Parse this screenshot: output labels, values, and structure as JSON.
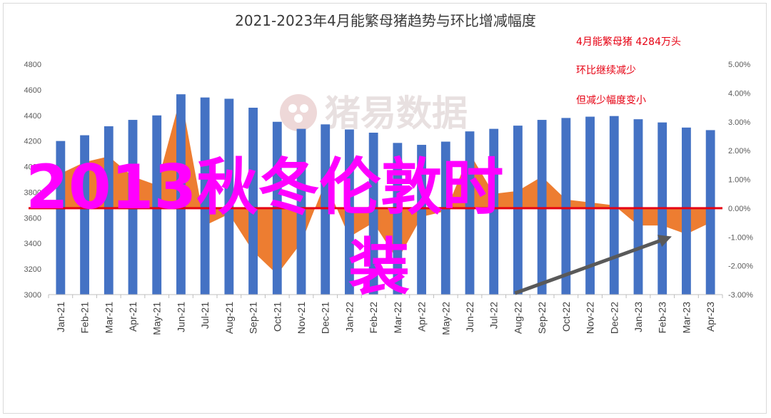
{
  "chart_data": {
    "type": "bar",
    "title": "2021-2023年4月能繁母猪趋势与环比增减幅度",
    "categories": [
      "Jan-21",
      "Feb-21",
      "Mar-21",
      "Apr-21",
      "May-21",
      "Jun-21",
      "Jul-21",
      "Aug-21",
      "Sep-21",
      "Oct-21",
      "Nov-21",
      "Dec-21",
      "Jan-22",
      "Feb-22",
      "Mar-22",
      "Apr-22",
      "May-22",
      "Jun-22",
      "Jul-22",
      "Aug-22",
      "Sep-22",
      "Oct-22",
      "Nov-22",
      "Dec-22",
      "Jan-23",
      "Feb-23",
      "Mar-23",
      "Apr-23"
    ],
    "series": [
      {
        "axis": "left",
        "type": "bar",
        "color": "#4472c4",
        "values": [
          4200,
          4245,
          4315,
          4365,
          4400,
          4565,
          4540,
          4530,
          4460,
          4350,
          4295,
          4330,
          4290,
          4265,
          4185,
          4170,
          4195,
          4275,
          4295,
          4320,
          4365,
          4380,
          4390,
          4395,
          4370,
          4345,
          4305,
          4285
        ]
      },
      {
        "axis": "right",
        "type": "area",
        "color": "#ed7d31",
        "values": [
          1.2,
          1.6,
          1.8,
          1.1,
          0.8,
          3.9,
          -0.6,
          -0.2,
          -1.5,
          -2.3,
          -1.2,
          0.9,
          -1.0,
          -0.5,
          -1.8,
          -0.3,
          -0.1,
          1.9,
          0.5,
          0.6,
          1.1,
          0.3,
          0.2,
          0.1,
          -0.6,
          -0.6,
          -0.9,
          -0.5
        ]
      }
    ],
    "ylim_left": [
      3000,
      4800
    ],
    "yticks_left": [
      "3000",
      "3200",
      "3400",
      "3600",
      "3800",
      "4000",
      "4200",
      "4400",
      "4600",
      "4800"
    ],
    "ylim_right": [
      -3.0,
      5.0
    ],
    "yticks_right": [
      "-3.00%",
      "-2.00%",
      "-1.00%",
      "0.00%",
      "1.00%",
      "2.00%",
      "3.00%",
      "4.00%",
      "5.00%"
    ],
    "reference_line": {
      "value": 0.0,
      "axis": "right",
      "color": "#e60012"
    },
    "arrow": {
      "color": "#595959"
    },
    "annotations": [
      "4月能繁母猪 4284万头",
      "环比继续减少",
      "但减少幅度变小"
    ],
    "grid": false,
    "legend": "none"
  },
  "watermark": {
    "text": "猪易数据"
  },
  "overlay_text": {
    "line1": "2013秋冬伦敦时",
    "line2": "装"
  }
}
